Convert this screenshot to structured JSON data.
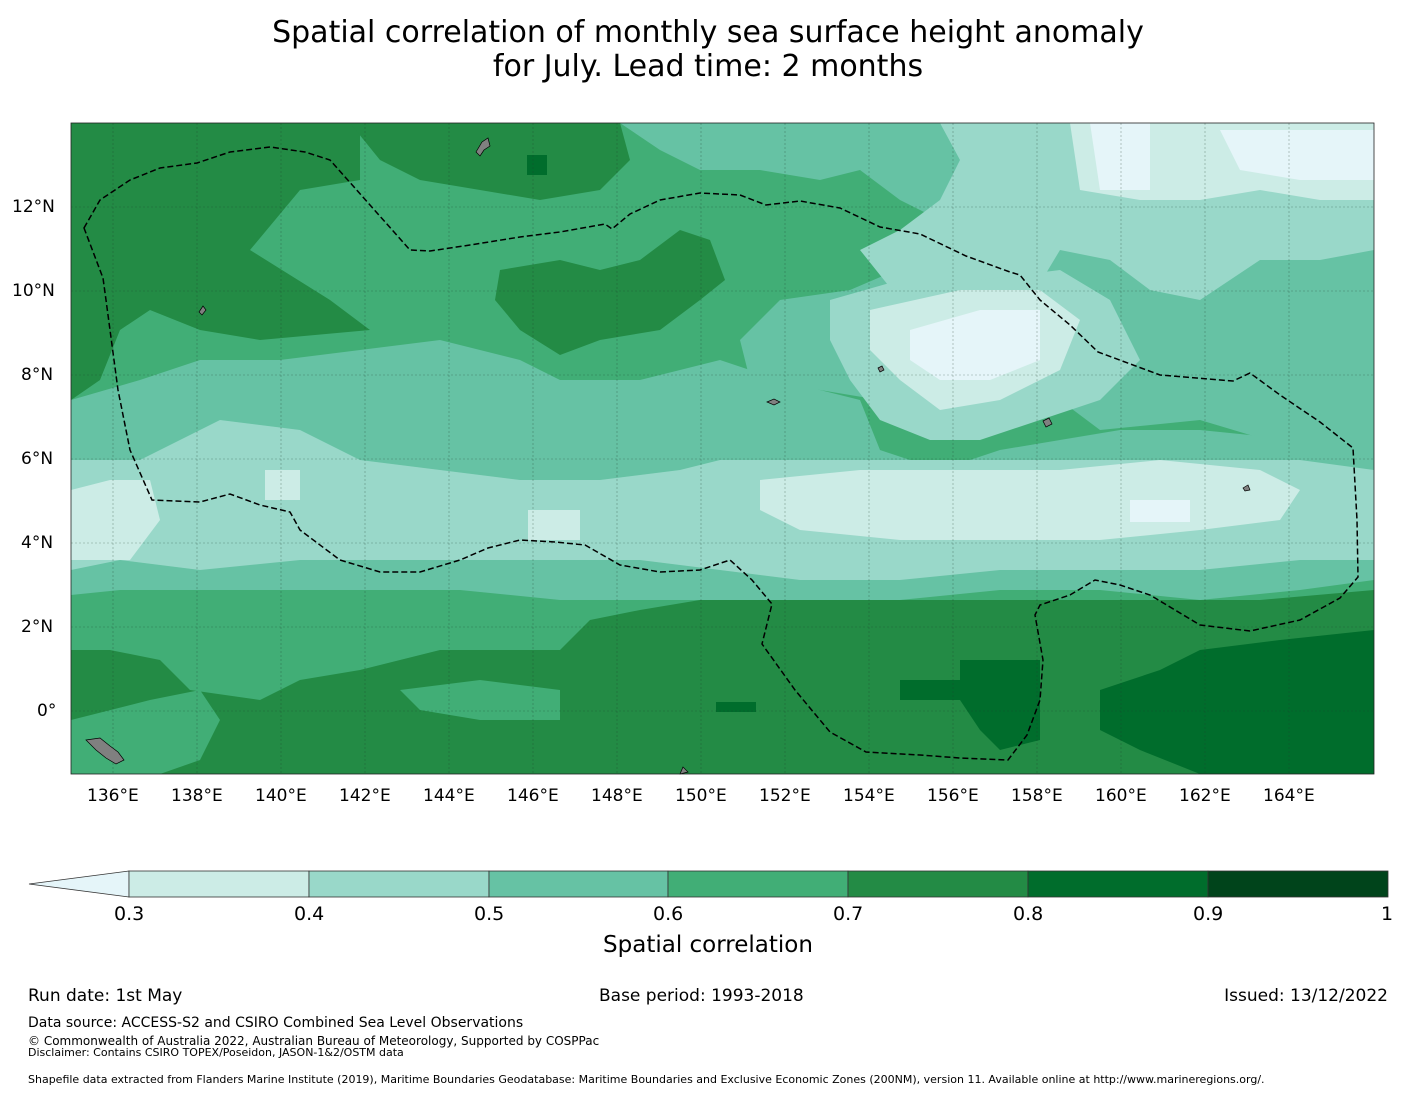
{
  "title": {
    "line1": "Spatial correlation of monthly sea surface height anomaly",
    "line2": "for July. Lead time: 2 months"
  },
  "map": {
    "lon_labels": [
      "136°E",
      "138°E",
      "140°E",
      "142°E",
      "144°E",
      "146°E",
      "148°E",
      "150°E",
      "152°E",
      "154°E",
      "156°E",
      "158°E",
      "160°E",
      "162°E",
      "164°E"
    ],
    "lat_labels": [
      "12°N",
      "10°N",
      "8°N",
      "6°N",
      "4°N",
      "2°N",
      "0°"
    ]
  },
  "colorbar": {
    "label": "Spatial correlation",
    "ticks": [
      "0.3",
      "0.4",
      "0.5",
      "0.6",
      "0.7",
      "0.8",
      "0.9",
      "1"
    ],
    "colors": [
      "#e5f5f9",
      "#ccece6",
      "#99d8c9",
      "#66c2a4",
      "#41ae76",
      "#238b45",
      "#006d2c",
      "#00441b"
    ],
    "extend": "min"
  },
  "footer": {
    "run_date": "Run date: 1st May",
    "base_period": "Base period: 1993-2018",
    "issued": "Issued: 13/12/2022",
    "data_source": "Data source: ACCESS-S2 and CSIRO Combined Sea Level Observations",
    "copyright": "© Commonwealth of Australia 2022, Australian Bureau of Meteorology, Supported by COSPPac",
    "disclaimer": "Disclaimer: Contains CSIRO TOPEX/Poseidon, JASON-1&2/OSTM data",
    "shapefile": "Shapefile data extracted from Flanders Marine Institute (2019), Maritime Boundaries Geodatabase: Maritime Boundaries and Exclusive Economic Zones (200NM), version 11. Available online at http://www.marineregions.org/."
  }
}
